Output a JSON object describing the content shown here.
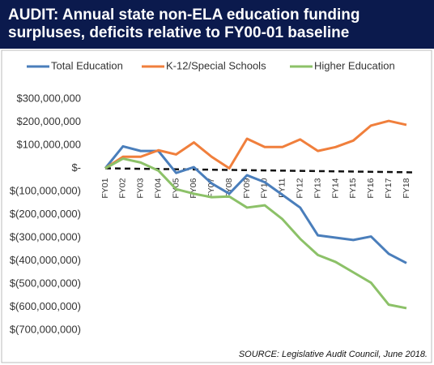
{
  "chart_data": {
    "type": "line",
    "title": "AUDIT: Annual state non-ELA education funding surpluses, deficits relative to FY00-01 baseline",
    "source": "SOURCE: Legislative Audit Council, June 2018.",
    "categories": [
      "FY01",
      "FY02",
      "FY03",
      "FY04",
      "FY05",
      "FY06",
      "FY07",
      "FY08",
      "FY09",
      "FY10",
      "FY11",
      "FY12",
      "FY13",
      "FY14",
      "FY15",
      "FY16",
      "FY17",
      "FY18"
    ],
    "series": [
      {
        "name": "Total Education",
        "color": "#4a7ebb",
        "values": [
          0,
          95000000,
          75000000,
          75000000,
          -20000000,
          5000000,
          -65000000,
          -110000000,
          -30000000,
          -60000000,
          -115000000,
          -170000000,
          -290000000,
          -300000000,
          -310000000,
          -295000000,
          -370000000,
          -410000000
        ]
      },
      {
        "name": "K-12/Special Schools",
        "color": "#f07f3c",
        "values": [
          0,
          50000000,
          50000000,
          78000000,
          60000000,
          112000000,
          50000000,
          0,
          128000000,
          92000000,
          92000000,
          125000000,
          75000000,
          92000000,
          120000000,
          185000000,
          205000000,
          188000000
        ]
      },
      {
        "name": "Higher Education",
        "color": "#8cc168",
        "values": [
          0,
          42000000,
          25000000,
          -10000000,
          -90000000,
          -110000000,
          -125000000,
          -122000000,
          -170000000,
          -160000000,
          -220000000,
          -305000000,
          -375000000,
          -405000000,
          -450000000,
          -495000000,
          -590000000,
          -605000000
        ]
      }
    ],
    "ylim": [
      -700000000,
      300000000
    ],
    "yticks": [
      {
        "value": 300000000,
        "label": "$300,000,000"
      },
      {
        "value": 200000000,
        "label": "$200,000,000"
      },
      {
        "value": 100000000,
        "label": "$100,000,000"
      },
      {
        "value": 0,
        "label": "$-"
      },
      {
        "value": -100000000,
        "label": "$(100,000,000)"
      },
      {
        "value": -200000000,
        "label": "$(200,000,000)"
      },
      {
        "value": -300000000,
        "label": "$(300,000,000)"
      },
      {
        "value": -400000000,
        "label": "$(400,000,000)"
      },
      {
        "value": -500000000,
        "label": "$(500,000,000)"
      },
      {
        "value": -600000000,
        "label": "$(600,000,000)"
      },
      {
        "value": -700000000,
        "label": "$(700,000,000)"
      }
    ],
    "grid": false,
    "legend": "top"
  }
}
